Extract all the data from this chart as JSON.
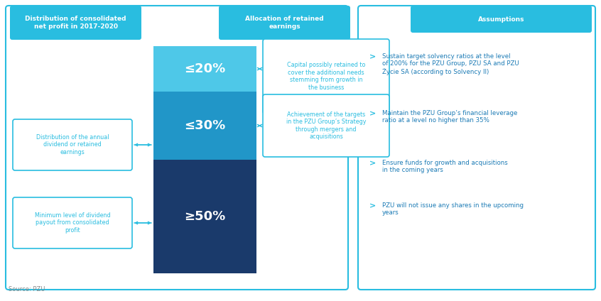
{
  "background_color": "#ffffff",
  "cyan_color": "#29bde0",
  "dark_cyan_color": "#1eadd4",
  "bar_color_top": "#4ec8e8",
  "bar_color_mid": "#2196c8",
  "bar_color_bot": "#1a3a6b",
  "border_color": "#29bde0",
  "assumption_text_color": "#1a7ab5",
  "left_header_text": "Distribution of consolidated\nnet profit in 2017-2020",
  "middle_header_text": "Allocation of retained\nearnings",
  "right_header_text": "Assumptions",
  "bar_segments": [
    {
      "label": "≤20%",
      "value": 20,
      "color": "#4ec8e8"
    },
    {
      "label": "≤30%",
      "value": 30,
      "color": "#2196c8"
    },
    {
      "label": "≥50%",
      "value": 50,
      "color": "#1a3a6b"
    }
  ],
  "left_box1_text": "Distribution of the annual\ndividend or retained\nearnings",
  "left_box2_text": "Minimum level of dividend\npayout from consolidated\nprofit",
  "right_box1_text": "Capital possibly retained to\ncover the additional needs\nstemming from growth in\nthe business",
  "right_box2_text": "Achievement of the targets\nin the PZU Group’s Strategy\nthrough mergers and\nacquisitions",
  "assumptions": [
    "Sustain target solvency ratios at the level\nof 200% for the PZU Group, PZU SA and PZU\nŻycie SA (according to Solvency II)",
    "Maintain the PZU Group’s financial leverage\nratio at a level no higher than 35%",
    "Ensure funds for growth and acquisitions\nin the coming years",
    "PZU will not issue any shares in the upcoming\nyears"
  ],
  "source_text": "Source: PZU"
}
